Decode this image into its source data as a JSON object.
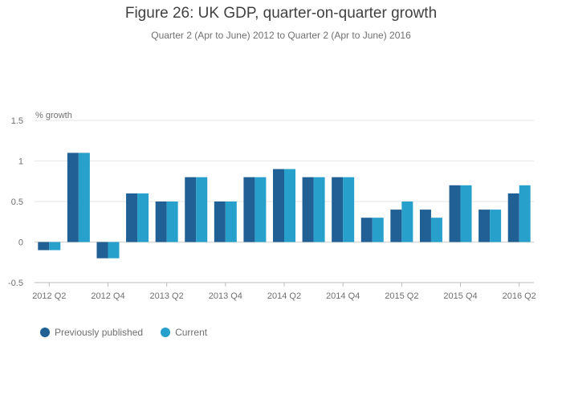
{
  "header": {
    "title": "Figure 26: UK GDP, quarter-on-quarter growth",
    "subtitle": "Quarter 2 (Apr to June) 2012 to Quarter 2 (Apr to June) 2016"
  },
  "colors": {
    "previously_published": "#206095",
    "current": "#27a0cc",
    "grid": "#e6e6e6",
    "axis": "#bcbcbd"
  },
  "chart_data": {
    "type": "bar",
    "ylabel": "% growth",
    "ylim": [
      -0.5,
      1.5
    ],
    "yticks": [
      -0.5,
      0,
      0.5,
      1,
      1.5
    ],
    "ytick_labels": [
      "-0.5",
      "0",
      "0.5",
      "1",
      "1.5"
    ],
    "grid": true,
    "legend_position": "bottom-left",
    "categories": [
      "2012 Q2",
      "2012 Q3",
      "2012 Q4",
      "2013 Q1",
      "2013 Q2",
      "2013 Q3",
      "2013 Q4",
      "2014 Q1",
      "2014 Q2",
      "2014 Q3",
      "2014 Q4",
      "2015 Q1",
      "2015 Q2",
      "2015 Q3",
      "2015 Q4",
      "2016 Q1",
      "2016 Q2"
    ],
    "x_tick_labels": [
      "2012 Q2",
      "",
      "2012 Q4",
      "",
      "2013 Q2",
      "",
      "2013 Q4",
      "",
      "2014 Q2",
      "",
      "2014 Q4",
      "",
      "2015 Q2",
      "",
      "2015 Q4",
      "",
      "2016 Q2"
    ],
    "series": [
      {
        "name": "Previously published",
        "values": [
          -0.1,
          1.1,
          -0.2,
          0.6,
          0.5,
          0.8,
          0.5,
          0.8,
          0.9,
          0.8,
          0.8,
          0.3,
          0.4,
          0.4,
          0.7,
          0.4,
          0.6
        ]
      },
      {
        "name": "Current",
        "values": [
          -0.1,
          1.1,
          -0.2,
          0.6,
          0.5,
          0.8,
          0.5,
          0.8,
          0.9,
          0.8,
          0.8,
          0.3,
          0.5,
          0.3,
          0.7,
          0.4,
          0.7
        ]
      }
    ]
  }
}
